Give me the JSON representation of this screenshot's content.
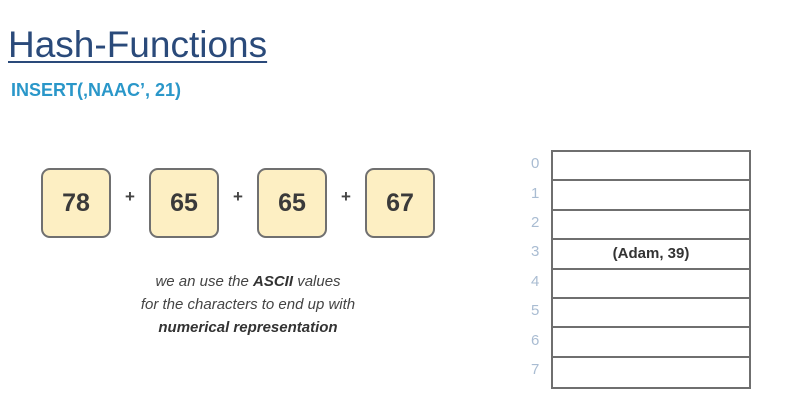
{
  "title": "Hash-Functions",
  "subtitle": "INSERT(‚NAAC’, 21)",
  "ascii_sum": {
    "values": [
      "78",
      "65",
      "65",
      "67"
    ],
    "operator": "+"
  },
  "caption": {
    "line1_pre": "we an use the ",
    "line1_bold": "ASCII",
    "line1_post": " values",
    "line2": "for the characters to end up with",
    "line3_bold": "numerical representation"
  },
  "hash_table": {
    "indices": [
      "0",
      "1",
      "2",
      "3",
      "4",
      "5",
      "6",
      "7"
    ],
    "cells": [
      "",
      "",
      "",
      "(Adam, 39)",
      "",
      "",
      "",
      ""
    ]
  },
  "colors": {
    "title": "#2a4a7a",
    "subtitle": "#2a97c9",
    "box_fill": "#fdefc3",
    "index": "#a9bcd2"
  }
}
